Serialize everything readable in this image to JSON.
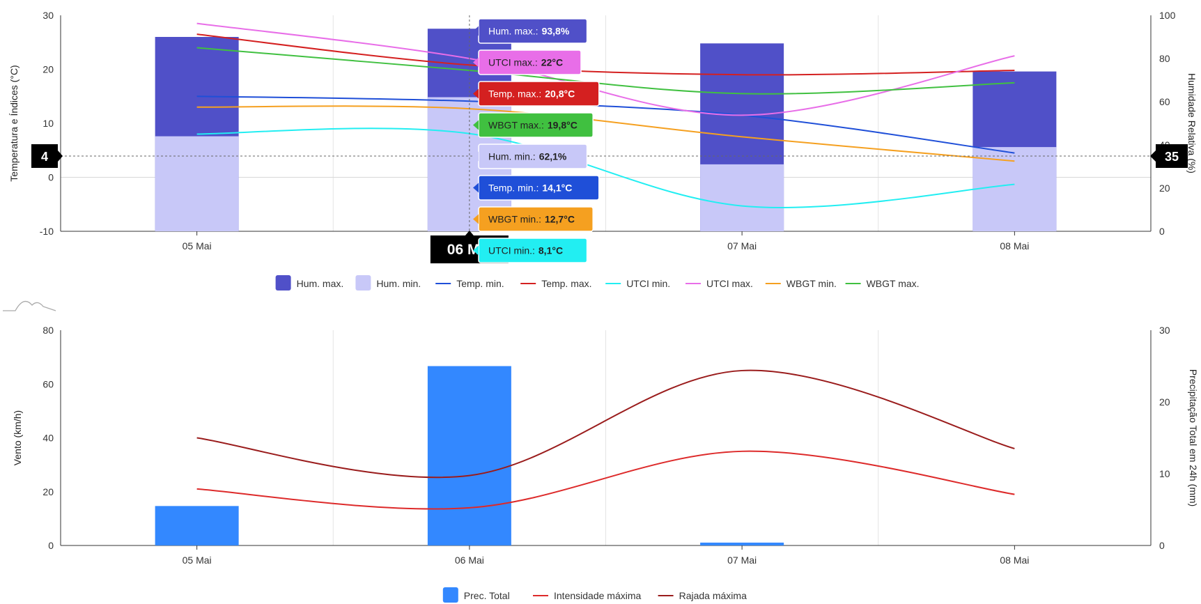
{
  "colors": {
    "hum_max": "#5050c8",
    "hum_min": "#c8c8f8",
    "temp_min": "#1f4fd8",
    "temp_max": "#d42020",
    "utci_min": "#22eef2",
    "utci_max": "#e86ee8",
    "wbgt_min": "#f5a020",
    "wbgt_max": "#40c040",
    "prec": "#3388ff",
    "wind_int": "#dd2a2a",
    "wind_gust": "#9a1c1c"
  },
  "chart_data": [
    {
      "type": "bar",
      "categories": [
        "05 Mai",
        "06 Mai",
        "07 Mai",
        "08 Mai"
      ],
      "ylabel_left": "Temperatura e Índices (°C)",
      "ylabel_right": "Humidade Relativa (%)",
      "ylim_left": [
        -10,
        30
      ],
      "ylim_right": [
        0,
        100
      ],
      "left_ticks": [
        "30",
        "20",
        "10",
        "0",
        "-10"
      ],
      "right_ticks": [
        "100",
        "80",
        "60",
        "40",
        "20",
        "0"
      ],
      "bars": [
        {
          "name": "Hum. max.",
          "color_key": "hum_max",
          "axis": "right",
          "values": [
            90,
            93.8,
            87,
            74
          ]
        },
        {
          "name": "Hum. min.",
          "color_key": "hum_min",
          "axis": "right",
          "values": [
            44,
            62.1,
            31,
            39
          ]
        }
      ],
      "series": [
        {
          "name": "Temp. min.",
          "color_key": "temp_min",
          "values": [
            15,
            14.1,
            11.5,
            4.5
          ]
        },
        {
          "name": "Temp. max.",
          "color_key": "temp_max",
          "values": [
            26.5,
            20.8,
            19,
            19.8
          ]
        },
        {
          "name": "UTCI min.",
          "color_key": "utci_min",
          "values": [
            8,
            8.1,
            -5.3,
            -1.3
          ]
        },
        {
          "name": "UTCI max.",
          "color_key": "utci_max",
          "values": [
            28.5,
            22,
            11.5,
            22.5
          ]
        },
        {
          "name": "WBGT min.",
          "color_key": "wbgt_min",
          "values": [
            13,
            12.7,
            7.5,
            3
          ]
        },
        {
          "name": "WBGT max.",
          "color_key": "wbgt_max",
          "values": [
            24,
            19.8,
            15.5,
            17.5
          ]
        }
      ],
      "crosshair": {
        "category": "06 Mai",
        "left_value": "4",
        "right_value": "35"
      },
      "tooltip_items": [
        {
          "label": "Hum. max.:",
          "value": "93,8%",
          "color_key": "hum_max",
          "text_color": "#ffffff"
        },
        {
          "label": "UTCI max.:",
          "value": "22°C",
          "color_key": "utci_max",
          "text_color": "#222222"
        },
        {
          "label": "Temp. max.:",
          "value": "20,8°C",
          "color_key": "temp_max",
          "text_color": "#ffffff"
        },
        {
          "label": "WBGT max.:",
          "value": "19,8°C",
          "color_key": "wbgt_max",
          "text_color": "#222222"
        },
        {
          "label": "Hum. min.:",
          "value": "62,1%",
          "color_key": "hum_min",
          "text_color": "#222222"
        },
        {
          "label": "Temp. min.:",
          "value": "14,1°C",
          "color_key": "temp_min",
          "text_color": "#ffffff"
        },
        {
          "label": "WBGT min.:",
          "value": "12,7°C",
          "color_key": "wbgt_min",
          "text_color": "#222222"
        },
        {
          "label": "UTCI min.:",
          "value": "8,1°C",
          "color_key": "utci_min",
          "text_color": "#222222"
        }
      ],
      "legend": [
        {
          "name": "Hum. max.",
          "color_key": "hum_max",
          "shape": "box"
        },
        {
          "name": "Hum. min.",
          "color_key": "hum_min",
          "shape": "box"
        },
        {
          "name": "Temp. min.",
          "color_key": "temp_min",
          "shape": "line"
        },
        {
          "name": "Temp. max.",
          "color_key": "temp_max",
          "shape": "line"
        },
        {
          "name": "UTCI min.",
          "color_key": "utci_min",
          "shape": "line"
        },
        {
          "name": "UTCI max.",
          "color_key": "utci_max",
          "shape": "line"
        },
        {
          "name": "WBGT min.",
          "color_key": "wbgt_min",
          "shape": "line"
        },
        {
          "name": "WBGT max.",
          "color_key": "wbgt_max",
          "shape": "line"
        }
      ],
      "legend_position": "bottom",
      "grid": true
    },
    {
      "type": "bar",
      "categories": [
        "05 Mai",
        "06 Mai",
        "07 Mai",
        "08 Mai"
      ],
      "ylabel_left": "Vento (km/h)",
      "ylabel_right": "Precipitação Total em 24h (mm)",
      "ylim_left": [
        0,
        80
      ],
      "ylim_right": [
        0,
        30
      ],
      "left_ticks": [
        "80",
        "60",
        "40",
        "20",
        "0"
      ],
      "right_ticks": [
        "30",
        "20",
        "10",
        "0"
      ],
      "bars": [
        {
          "name": "Prec. Total",
          "color_key": "prec",
          "axis": "right",
          "values": [
            5.5,
            25,
            0.4,
            0
          ]
        }
      ],
      "series": [
        {
          "name": "Intensidade máxima",
          "color_key": "wind_int",
          "values": [
            21,
            14,
            35,
            19
          ]
        },
        {
          "name": "Rajada máxima",
          "color_key": "wind_gust",
          "values": [
            40,
            26,
            65,
            36
          ]
        }
      ],
      "legend": [
        {
          "name": "Prec. Total",
          "color_key": "prec",
          "shape": "box"
        },
        {
          "name": "Intensidade máxima",
          "color_key": "wind_int",
          "shape": "line"
        },
        {
          "name": "Rajada máxima",
          "color_key": "wind_gust",
          "shape": "line"
        }
      ],
      "legend_position": "bottom",
      "grid": true
    }
  ]
}
